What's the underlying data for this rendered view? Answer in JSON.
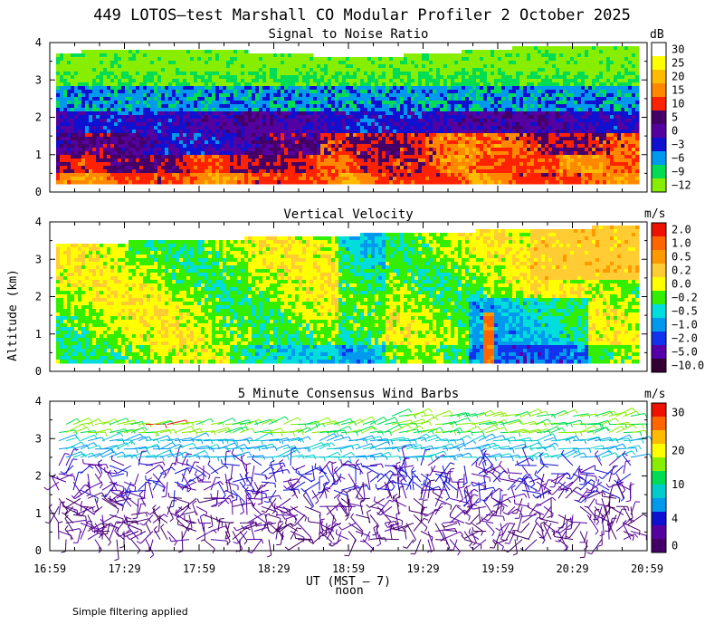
{
  "title": "449 LOTOS—test Marshall CO Modular Profiler  2 October 2025",
  "footnote": "Simple filtering applied",
  "y_axis_label": "Altitude (km)",
  "x_axis_label": "UT  (MST – 7)",
  "noon_label": "noon",
  "x_tick_labels": [
    "16:59",
    "17:29",
    "17:59",
    "18:29",
    "18:59",
    "19:29",
    "19:59",
    "20:29",
    "20:59"
  ],
  "y_tick_labels": [
    "0",
    "1",
    "2",
    "3",
    "4"
  ],
  "chart_data": [
    {
      "type": "heatmap",
      "title": "Signal to Noise Ratio",
      "unit": "dB",
      "ylabel": "Altitude (km)",
      "ylim": [
        0,
        4
      ],
      "x_range_ut": [
        "16:59",
        "20:59"
      ],
      "data_altitude_range_km": [
        0.3,
        3.9
      ],
      "colorbar_labels": [
        "30",
        "25",
        "20",
        "15",
        "10",
        "5",
        "0",
        "−3",
        "−6",
        "−9",
        "−12"
      ],
      "colorbar_colors": [
        "#ffffff",
        "#ffff00",
        "#ffbb00",
        "#ff8800",
        "#ff2200",
        "#440066",
        "#5500a0",
        "#1010d0",
        "#0099ee",
        "#00dd55",
        "#88ee00"
      ],
      "colorbar_bins": 11,
      "dominant_levels_by_altitude_km": [
        {
          "altitude": 0.4,
          "value": 15
        },
        {
          "altitude": 1.0,
          "value": 10
        },
        {
          "altitude": 1.5,
          "value": 3
        },
        {
          "altitude": 2.0,
          "value": 0
        },
        {
          "altitude": 2.5,
          "value": -3
        },
        {
          "altitude": 3.0,
          "value": -6
        },
        {
          "altitude": 3.5,
          "value": -12
        }
      ]
    },
    {
      "type": "heatmap",
      "title": "Vertical Velocity",
      "unit": "m/s",
      "ylabel": "Altitude (km)",
      "ylim": [
        0,
        4
      ],
      "x_range_ut": [
        "16:59",
        "20:59"
      ],
      "data_altitude_range_km": [
        0.3,
        3.9
      ],
      "colorbar_labels": [
        "2.0",
        "1.0",
        "0.5",
        "0.2",
        "0.0",
        "−0.2",
        "−0.5",
        "−1.0",
        "−2.0",
        "−5.0",
        "−10.0"
      ],
      "colorbar_colors": [
        "#ee1100",
        "#ff6600",
        "#ff9900",
        "#ffcc33",
        "#ffff00",
        "#33ee00",
        "#00dddd",
        "#0099ee",
        "#1133ee",
        "#5500aa",
        "#330033"
      ],
      "colorbar_bins": 11,
      "typical_range_m_s": [
        -1.0,
        1.0
      ]
    },
    {
      "type": "scatter",
      "title": "5 Minute Consensus Wind Barbs",
      "unit": "m/s",
      "ylabel": "Altitude (km)",
      "ylim": [
        0,
        4
      ],
      "x_range_ut": [
        "16:59",
        "20:59"
      ],
      "colorbar_labels": [
        "30",
        "20",
        "10",
        "4",
        "0"
      ],
      "colorbar_colors": [
        "#ee1100",
        "#ff6600",
        "#ffbb00",
        "#ffff00",
        "#88ee00",
        "#00dd55",
        "#00cccc",
        "#0099ee",
        "#1010d0",
        "#5500a0",
        "#440066"
      ],
      "colorbar_bins": 11,
      "speed_by_altitude_km": [
        {
          "altitude": 0.5,
          "speed": 3
        },
        {
          "altitude": 1.0,
          "speed": 4
        },
        {
          "altitude": 1.5,
          "speed": 5
        },
        {
          "altitude": 2.0,
          "speed": 6
        },
        {
          "altitude": 2.5,
          "speed": 8
        },
        {
          "altitude": 3.0,
          "speed": 10
        },
        {
          "altitude": 3.5,
          "speed": 13
        }
      ]
    }
  ]
}
